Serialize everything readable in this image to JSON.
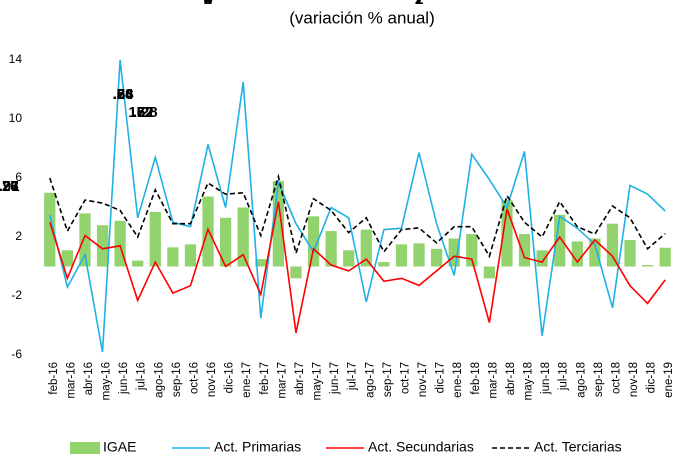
{
  "chart_data": {
    "type": "combo",
    "title": "(variación % anual)",
    "categories": [
      "feb-16",
      "mar-16",
      "abr-16",
      "may-16",
      "jun-16",
      "jul-16",
      "ago-16",
      "sep-16",
      "oct-16",
      "nov-16",
      "dic-16",
      "ene-17",
      "feb-17",
      "mar-17",
      "abr-17",
      "may-17",
      "jun-17",
      "jul-17",
      "ago-17",
      "sep-17",
      "oct-17",
      "nov-17",
      "dic-17",
      "ene-18",
      "feb-18",
      "mar-18",
      "abr-18",
      "may-18",
      "jun-18",
      "jul-18",
      "ago-18",
      "sep-18",
      "oct-18",
      "nov-18",
      "dic-18",
      "ene-19"
    ],
    "series": [
      {
        "name": "IGAE",
        "type": "bar",
        "color": "#92d36e",
        "values": [
          5.0,
          1.1,
          3.6,
          2.8,
          3.1,
          0.4,
          3.7,
          1.3,
          1.5,
          4.74,
          3.3,
          4.0,
          0.5,
          5.8,
          -0.8,
          3.4,
          2.4,
          1.1,
          2.5,
          0.3,
          1.5,
          1.57,
          1.2,
          1.9,
          2.2,
          -0.8,
          4.5,
          2.2,
          1.1,
          3.5,
          1.7,
          1.9,
          2.9,
          1.8,
          0.1,
          1.27
        ],
        "value_labels": [
          null,
          null,
          null,
          null,
          null,
          null,
          null,
          null,
          null,
          "4.74",
          null,
          null,
          null,
          null,
          null,
          null,
          null,
          null,
          null,
          null,
          null,
          "1.57",
          null,
          null,
          null,
          null,
          null,
          null,
          null,
          null,
          null,
          null,
          null,
          null,
          null,
          "1.27"
        ],
        "label_color": "#4e6b2c"
      },
      {
        "name": "Act. Primarias",
        "type": "line",
        "color": "#1fb1e6",
        "dashed": false,
        "values": [
          3.5,
          -1.4,
          0.8,
          -5.8,
          14.0,
          3.3,
          7.4,
          3.0,
          2.7,
          8.28,
          4.0,
          12.5,
          -3.5,
          5.7,
          2.9,
          1.0,
          4.0,
          3.3,
          -2.4,
          2.5,
          2.6,
          7.72,
          2.9,
          -0.6,
          7.6,
          5.9,
          4.0,
          7.8,
          -4.7,
          3.4,
          2.6,
          1.5,
          -2.8,
          5.5,
          4.9,
          3.76
        ],
        "value_labels": [
          null,
          null,
          null,
          null,
          null,
          null,
          null,
          null,
          null,
          "8.28",
          null,
          null,
          null,
          null,
          null,
          null,
          null,
          null,
          null,
          null,
          null,
          "7.72",
          null,
          null,
          null,
          null,
          null,
          null,
          null,
          null,
          null,
          null,
          null,
          null,
          null,
          "3.76"
        ]
      },
      {
        "name": "Act. Secundarias",
        "type": "line",
        "color": "#ff0000",
        "dashed": false,
        "values": [
          3.0,
          -0.8,
          2.1,
          1.2,
          1.4,
          -2.3,
          0.3,
          -1.8,
          -1.3,
          2.53,
          0.0,
          0.8,
          -1.9,
          4.4,
          -4.5,
          1.2,
          0.1,
          -0.3,
          0.5,
          -1.0,
          -0.8,
          -1.28,
          -0.3,
          0.7,
          0.5,
          -3.8,
          3.9,
          0.6,
          0.3,
          2.0,
          0.3,
          1.8,
          0.7,
          -1.3,
          -2.5,
          -0.91
        ],
        "value_labels": [
          null,
          null,
          null,
          null,
          null,
          null,
          null,
          null,
          null,
          "2.53",
          null,
          null,
          null,
          null,
          null,
          null,
          null,
          null,
          null,
          null,
          null,
          "-1.28",
          null,
          null,
          null,
          null,
          null,
          null,
          null,
          null,
          null,
          null,
          null,
          null,
          null,
          "-0.91"
        ]
      },
      {
        "name": "Act. Terciarias",
        "type": "line",
        "color": "#000000",
        "dashed": true,
        "values": [
          6.0,
          2.4,
          4.5,
          4.3,
          3.8,
          2.0,
          5.2,
          2.9,
          2.9,
          5.66,
          4.9,
          5.0,
          2.1,
          6.1,
          0.9,
          4.6,
          3.8,
          2.3,
          3.3,
          1.0,
          2.5,
          2.62,
          1.6,
          2.7,
          2.7,
          0.7,
          4.8,
          3.0,
          2.0,
          4.4,
          2.7,
          2.2,
          4.1,
          3.3,
          1.2,
          2.23
        ],
        "value_labels": [
          null,
          null,
          null,
          null,
          null,
          null,
          null,
          null,
          null,
          "5.66",
          null,
          null,
          null,
          null,
          null,
          null,
          null,
          null,
          null,
          null,
          null,
          "2.62",
          null,
          null,
          null,
          null,
          null,
          null,
          null,
          null,
          null,
          null,
          null,
          null,
          null,
          "2.23"
        ]
      }
    ],
    "ylim": [
      -6,
      14
    ],
    "yticks": [
      -6,
      -2,
      2,
      6,
      10,
      14
    ],
    "grid": false,
    "legend": "bottom"
  }
}
